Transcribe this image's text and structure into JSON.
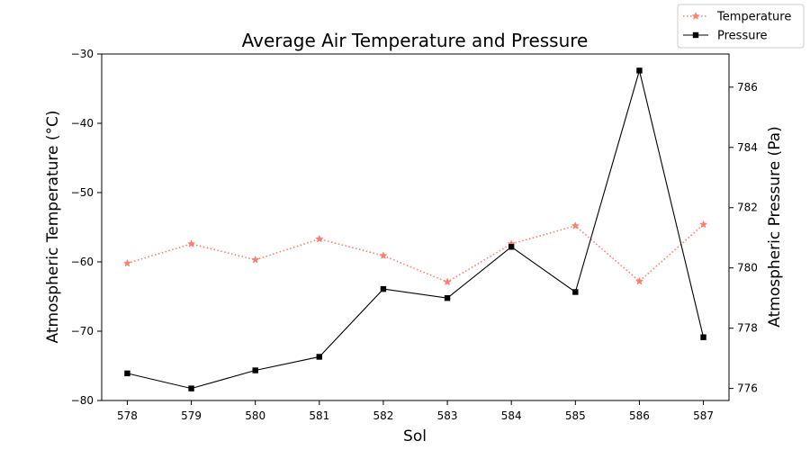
{
  "chart_data": {
    "type": "line",
    "title": "Average Air Temperature and Pressure",
    "xlabel": "Sol",
    "ylabel_left": "Atmospheric Temperature (°C)",
    "ylabel_right": "Atmospheric Pressure (Pa)",
    "x": [
      578,
      579,
      580,
      581,
      582,
      583,
      584,
      585,
      586,
      587
    ],
    "xlim": [
      577.6,
      587.4
    ],
    "ylim_left": [
      -80,
      -30
    ],
    "ylim_right": [
      775.6,
      787.1
    ],
    "yticks_left": [
      -80,
      -70,
      -60,
      -50,
      -40,
      -30
    ],
    "yticks_right": [
      776,
      778,
      780,
      782,
      784,
      786
    ],
    "grid": false,
    "legend_position": "upper-right, outside plot area",
    "series": [
      {
        "name": "Temperature",
        "axis": "left",
        "color": "#fa8072",
        "line_style": "dotted",
        "marker": "star",
        "values": [
          -60.2,
          -57.4,
          -59.7,
          -56.7,
          -59.1,
          -62.9,
          -57.4,
          -54.8,
          -62.8,
          -54.6
        ]
      },
      {
        "name": "Pressure",
        "axis": "right",
        "color": "#000000",
        "line_style": "solid",
        "marker": "square",
        "values": [
          776.5,
          776.0,
          776.6,
          777.05,
          779.3,
          779.0,
          780.7,
          779.2,
          786.55,
          777.7
        ]
      }
    ]
  }
}
